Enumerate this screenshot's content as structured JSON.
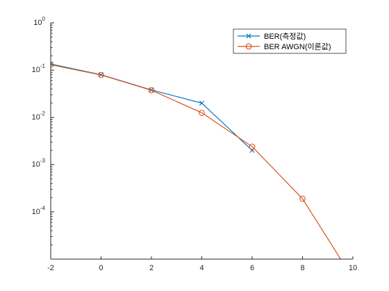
{
  "chart_data": {
    "type": "line",
    "title": "",
    "xlabel": "",
    "ylabel": "",
    "xlim": [
      -2,
      10
    ],
    "ylim": [
      1e-05,
      1
    ],
    "yscale": "log",
    "grid": false,
    "legend_position": "top-right",
    "x_ticks": [
      "-2",
      "0",
      "2",
      "4",
      "6",
      "8",
      "10"
    ],
    "y_ticks": [
      {
        "base": "10",
        "exp": "0",
        "value": 1
      },
      {
        "base": "10",
        "exp": "-1",
        "value": 0.1
      },
      {
        "base": "10",
        "exp": "-2",
        "value": 0.01
      },
      {
        "base": "10",
        "exp": "-3",
        "value": 0.001
      },
      {
        "base": "10",
        "exp": "-4",
        "value": 0.0001
      }
    ],
    "series": [
      {
        "name": "BER(측정값)",
        "color": "#0072BD",
        "marker": "x",
        "x": [
          -2,
          0,
          2,
          4,
          6
        ],
        "y": [
          0.135,
          0.08,
          0.038,
          0.02,
          0.002
        ]
      },
      {
        "name": "BER AWGN(이론값)",
        "color": "#D95319",
        "marker": "o",
        "x": [
          -2,
          0,
          2,
          4,
          6,
          8,
          10
        ],
        "y": [
          0.13,
          0.079,
          0.0375,
          0.0125,
          0.0024,
          0.00019,
          3.9e-06
        ]
      }
    ]
  }
}
